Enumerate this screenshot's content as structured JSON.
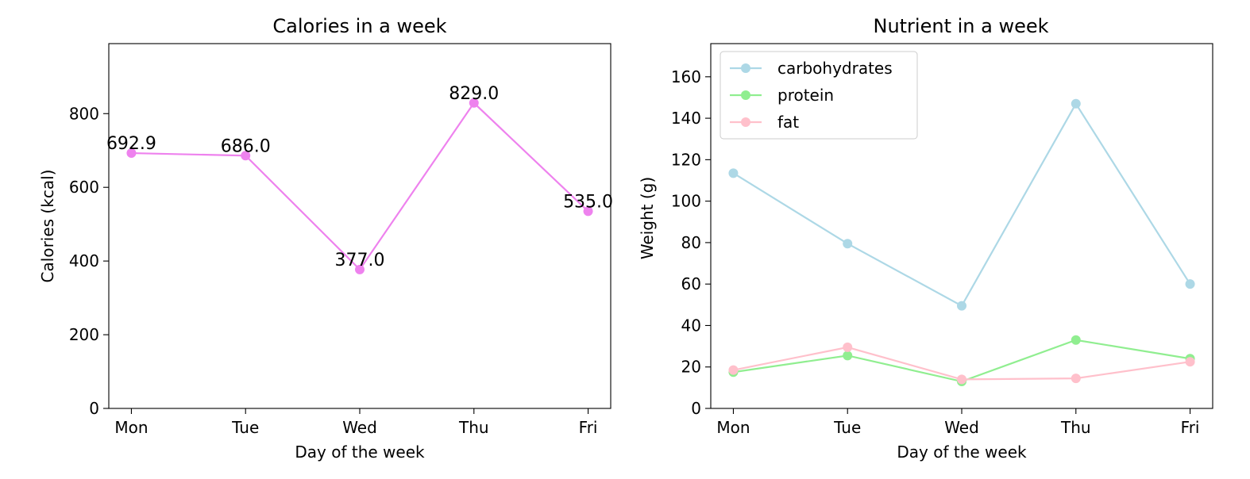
{
  "chart_data": [
    {
      "type": "line",
      "title": "Calories in a week",
      "xlabel": "Day of the week",
      "ylabel": "Calories (kcal)",
      "categories": [
        "Mon",
        "Tue",
        "Wed",
        "Thu",
        "Fri"
      ],
      "ylim": [
        0,
        990
      ],
      "yticks": [
        0,
        200,
        400,
        600,
        800
      ],
      "series": [
        {
          "values": [
            692.9,
            686.0,
            377.0,
            829.0,
            535.0
          ],
          "color": "#ee82ee"
        }
      ],
      "data_labels": [
        "692.9",
        "686.0",
        "377.0",
        "829.0",
        "535.0"
      ],
      "grid": false
    },
    {
      "type": "line",
      "title": "Nutrient in a week",
      "xlabel": "Day of the week",
      "ylabel": "Weight (g)",
      "categories": [
        "Mon",
        "Tue",
        "Wed",
        "Thu",
        "Fri"
      ],
      "ylim": [
        0,
        176
      ],
      "yticks": [
        0,
        20,
        40,
        60,
        80,
        100,
        120,
        140,
        160
      ],
      "legend_position": "upper-left",
      "grid": false,
      "series": [
        {
          "name": "carbohydrates",
          "values": [
            113.5,
            79.5,
            49.5,
            147.0,
            60.0
          ],
          "color": "#add8e6"
        },
        {
          "name": "protein",
          "values": [
            17.5,
            25.5,
            13.0,
            33.0,
            24.0
          ],
          "color": "#90ee90"
        },
        {
          "name": "fat",
          "values": [
            18.5,
            29.5,
            14.0,
            14.5,
            22.5
          ],
          "color": "#ffc0cb"
        }
      ]
    }
  ]
}
